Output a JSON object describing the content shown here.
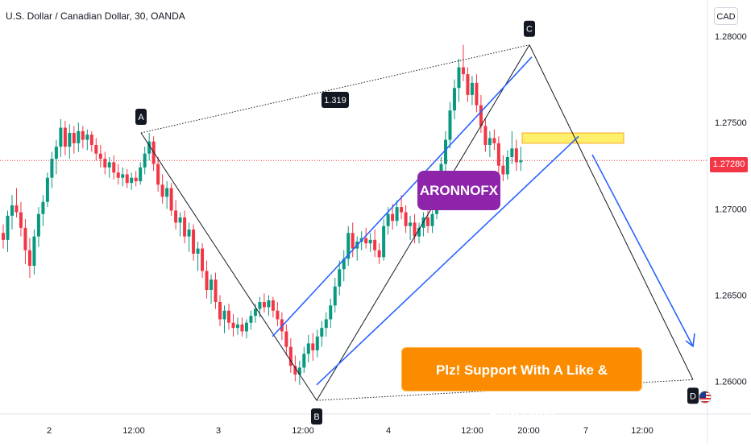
{
  "header": {
    "title": "U.S. Dollar / Canadian Dollar, 30, OANDA",
    "currency_button": "CAD"
  },
  "price_axis": {
    "current_price_label": "1.27280",
    "current_price": 1.2728
  },
  "annotations": {
    "brand_label": "ARONNOFX",
    "support_banner": "Plz! Support With A Like & Subscribe",
    "ratio_label": "1.319",
    "points": [
      "A",
      "B",
      "C",
      "D"
    ]
  },
  "colors": {
    "bull": "#089981",
    "bear": "#f23645",
    "channel": "#2962ff",
    "zone": "#ffeb3b",
    "brand": "#8e24aa",
    "banner": "#fb8c00"
  },
  "chart_data": {
    "type": "candlestick",
    "title": "U.S. Dollar / Canadian Dollar, 30, OANDA",
    "ylim": [
      1.2583,
      1.2807
    ],
    "y_ticks": [
      1.26,
      1.265,
      1.27,
      1.275,
      1.28
    ],
    "y_tick_labels": [
      "1.26000",
      "1.26500",
      "1.27000",
      "1.27500",
      "1.28000"
    ],
    "x_tick_labels": [
      "2",
      "12:00",
      "3",
      "12:00",
      "4",
      "12:00",
      "20:00",
      "7",
      "12:00"
    ],
    "grid": false,
    "current_price": 1.2728,
    "abcd_pattern": {
      "points": [
        {
          "label": "A",
          "price": 1.2744
        },
        {
          "label": "B",
          "price": 1.2589
        },
        {
          "label": "C",
          "price": 1.2795
        },
        {
          "label": "D",
          "price": 1.2601
        }
      ],
      "ratio_label": "1.319"
    },
    "channel": {
      "upper": [
        1.2626,
        1.2788
      ],
      "lower": [
        1.2598,
        1.2742
      ]
    },
    "supply_zone": {
      "low": 1.2738,
      "high": 1.2744
    },
    "candles": [
      [
        1.2686,
        1.2691,
        1.2677,
        1.2682
      ],
      [
        1.2682,
        1.2699,
        1.2675,
        1.2696
      ],
      [
        1.2696,
        1.2708,
        1.2688,
        1.2702
      ],
      [
        1.2702,
        1.2712,
        1.2695,
        1.2698
      ],
      [
        1.2698,
        1.2704,
        1.2684,
        1.2689
      ],
      [
        1.2689,
        1.2694,
        1.2668,
        1.2676
      ],
      [
        1.2676,
        1.2683,
        1.266,
        1.2667
      ],
      [
        1.2667,
        1.2688,
        1.2662,
        1.2684
      ],
      [
        1.2684,
        1.2701,
        1.2678,
        1.2697
      ],
      [
        1.2697,
        1.2708,
        1.269,
        1.2704
      ],
      [
        1.2704,
        1.2721,
        1.2701,
        1.2718
      ],
      [
        1.2718,
        1.2733,
        1.2712,
        1.2729
      ],
      [
        1.2729,
        1.274,
        1.272,
        1.2736
      ],
      [
        1.2736,
        1.2752,
        1.273,
        1.2747
      ],
      [
        1.2747,
        1.2751,
        1.2731,
        1.2736
      ],
      [
        1.2736,
        1.2749,
        1.2729,
        1.2744
      ],
      [
        1.2744,
        1.2748,
        1.2732,
        1.2738
      ],
      [
        1.2738,
        1.275,
        1.2733,
        1.2745
      ],
      [
        1.2745,
        1.2748,
        1.2735,
        1.274
      ],
      [
        1.274,
        1.2746,
        1.2734,
        1.2743
      ],
      [
        1.2743,
        1.2745,
        1.2733,
        1.2737
      ],
      [
        1.2737,
        1.2741,
        1.2728,
        1.2732
      ],
      [
        1.2732,
        1.2737,
        1.2724,
        1.2729
      ],
      [
        1.2729,
        1.2733,
        1.272,
        1.2724
      ],
      [
        1.2724,
        1.273,
        1.2718,
        1.2727
      ],
      [
        1.2727,
        1.2731,
        1.2717,
        1.2721
      ],
      [
        1.2721,
        1.2726,
        1.2714,
        1.2718
      ],
      [
        1.2718,
        1.2724,
        1.2713,
        1.272
      ],
      [
        1.272,
        1.2723,
        1.2712,
        1.2715
      ],
      [
        1.2715,
        1.2721,
        1.2711,
        1.2718
      ],
      [
        1.2718,
        1.2722,
        1.2713,
        1.2716
      ],
      [
        1.2716,
        1.2727,
        1.2714,
        1.2724
      ],
      [
        1.2724,
        1.2736,
        1.272,
        1.2732
      ],
      [
        1.2732,
        1.2744,
        1.2728,
        1.2739
      ],
      [
        1.2739,
        1.2742,
        1.2722,
        1.2726
      ],
      [
        1.2726,
        1.273,
        1.271,
        1.2714
      ],
      [
        1.2714,
        1.272,
        1.2703,
        1.2707
      ],
      [
        1.2707,
        1.2716,
        1.27,
        1.2712
      ],
      [
        1.2712,
        1.2715,
        1.2696,
        1.2699
      ],
      [
        1.2699,
        1.2705,
        1.2688,
        1.2692
      ],
      [
        1.2692,
        1.2698,
        1.2684,
        1.2695
      ],
      [
        1.2695,
        1.2699,
        1.268,
        1.2684
      ],
      [
        1.2684,
        1.2692,
        1.2675,
        1.2688
      ],
      [
        1.2688,
        1.2691,
        1.267,
        1.2674
      ],
      [
        1.2674,
        1.2681,
        1.2664,
        1.2677
      ],
      [
        1.2677,
        1.268,
        1.266,
        1.2664
      ],
      [
        1.2664,
        1.267,
        1.2648,
        1.2653
      ],
      [
        1.2653,
        1.2662,
        1.2645,
        1.2659
      ],
      [
        1.2659,
        1.2663,
        1.2642,
        1.2646
      ],
      [
        1.2646,
        1.265,
        1.2632,
        1.2636
      ],
      [
        1.2636,
        1.2644,
        1.2628,
        1.2641
      ],
      [
        1.2641,
        1.2645,
        1.263,
        1.2634
      ],
      [
        1.2634,
        1.2639,
        1.2626,
        1.2631
      ],
      [
        1.2631,
        1.2637,
        1.2627,
        1.2633
      ],
      [
        1.2633,
        1.2637,
        1.2626,
        1.2629
      ],
      [
        1.2629,
        1.2636,
        1.2625,
        1.2634
      ],
      [
        1.2634,
        1.2641,
        1.263,
        1.2638
      ],
      [
        1.2638,
        1.2645,
        1.2634,
        1.2642
      ],
      [
        1.2642,
        1.2649,
        1.2637,
        1.2646
      ],
      [
        1.2646,
        1.2651,
        1.264,
        1.2643
      ],
      [
        1.2643,
        1.265,
        1.2638,
        1.2647
      ],
      [
        1.2647,
        1.2649,
        1.2637,
        1.2641
      ],
      [
        1.2641,
        1.2646,
        1.2632,
        1.2636
      ],
      [
        1.2636,
        1.264,
        1.2624,
        1.2629
      ],
      [
        1.2629,
        1.2633,
        1.2615,
        1.262
      ],
      [
        1.262,
        1.2625,
        1.2605,
        1.2609
      ],
      [
        1.2609,
        1.2615,
        1.26,
        1.2604
      ],
      [
        1.2604,
        1.2612,
        1.2598,
        1.2608
      ],
      [
        1.2608,
        1.262,
        1.2605,
        1.2616
      ],
      [
        1.2616,
        1.2627,
        1.2611,
        1.2622
      ],
      [
        1.2622,
        1.2628,
        1.2612,
        1.2618
      ],
      [
        1.2618,
        1.263,
        1.2614,
        1.2626
      ],
      [
        1.2626,
        1.2635,
        1.262,
        1.2631
      ],
      [
        1.2631,
        1.264,
        1.2626,
        1.2636
      ],
      [
        1.2636,
        1.2648,
        1.2631,
        1.2644
      ],
      [
        1.2644,
        1.266,
        1.264,
        1.2655
      ],
      [
        1.2655,
        1.267,
        1.265,
        1.2665
      ],
      [
        1.2665,
        1.2676,
        1.2658,
        1.2671
      ],
      [
        1.2671,
        1.269,
        1.2667,
        1.2686
      ],
      [
        1.2686,
        1.2692,
        1.2672,
        1.2677
      ],
      [
        1.2677,
        1.2684,
        1.267,
        1.2681
      ],
      [
        1.2681,
        1.2687,
        1.2676,
        1.2683
      ],
      [
        1.2683,
        1.2689,
        1.2677,
        1.268
      ],
      [
        1.268,
        1.2686,
        1.2675,
        1.2682
      ],
      [
        1.2682,
        1.2688,
        1.2672,
        1.2676
      ],
      [
        1.2676,
        1.268,
        1.2668,
        1.2672
      ],
      [
        1.2672,
        1.2694,
        1.267,
        1.269
      ],
      [
        1.269,
        1.2701,
        1.2685,
        1.2697
      ],
      [
        1.2697,
        1.2703,
        1.2688,
        1.2693
      ],
      [
        1.2693,
        1.2705,
        1.269,
        1.2701
      ],
      [
        1.2701,
        1.2708,
        1.2694,
        1.2698
      ],
      [
        1.2698,
        1.2702,
        1.2686,
        1.269
      ],
      [
        1.269,
        1.2696,
        1.2682,
        1.2692
      ],
      [
        1.2692,
        1.2697,
        1.268,
        1.2684
      ],
      [
        1.2684,
        1.2692,
        1.268,
        1.2689
      ],
      [
        1.2689,
        1.2698,
        1.2684,
        1.2695
      ],
      [
        1.2695,
        1.2699,
        1.2686,
        1.269
      ],
      [
        1.269,
        1.2699,
        1.2686,
        1.2697
      ],
      [
        1.2697,
        1.272,
        1.2694,
        1.2716
      ],
      [
        1.2716,
        1.273,
        1.271,
        1.2726
      ],
      [
        1.2726,
        1.2745,
        1.2721,
        1.274
      ],
      [
        1.274,
        1.2762,
        1.2735,
        1.2757
      ],
      [
        1.2757,
        1.2775,
        1.2752,
        1.277
      ],
      [
        1.277,
        1.2787,
        1.2762,
        1.2782
      ],
      [
        1.2782,
        1.2795,
        1.2774,
        1.2778
      ],
      [
        1.2778,
        1.2782,
        1.2762,
        1.2766
      ],
      [
        1.2766,
        1.2777,
        1.276,
        1.2773
      ],
      [
        1.2773,
        1.2778,
        1.2756,
        1.276
      ],
      [
        1.276,
        1.2766,
        1.2744,
        1.2748
      ],
      [
        1.2748,
        1.2752,
        1.2733,
        1.2737
      ],
      [
        1.2737,
        1.2745,
        1.273,
        1.2741
      ],
      [
        1.2741,
        1.2746,
        1.2734,
        1.2738
      ],
      [
        1.2738,
        1.2742,
        1.272,
        1.2725
      ],
      [
        1.2725,
        1.2731,
        1.2716,
        1.272
      ],
      [
        1.272,
        1.2734,
        1.2717,
        1.273
      ],
      [
        1.273,
        1.2745,
        1.2726,
        1.2735
      ],
      [
        1.2735,
        1.274,
        1.2722,
        1.2727
      ],
      [
        1.2727,
        1.2736,
        1.2722,
        1.2728
      ]
    ]
  }
}
